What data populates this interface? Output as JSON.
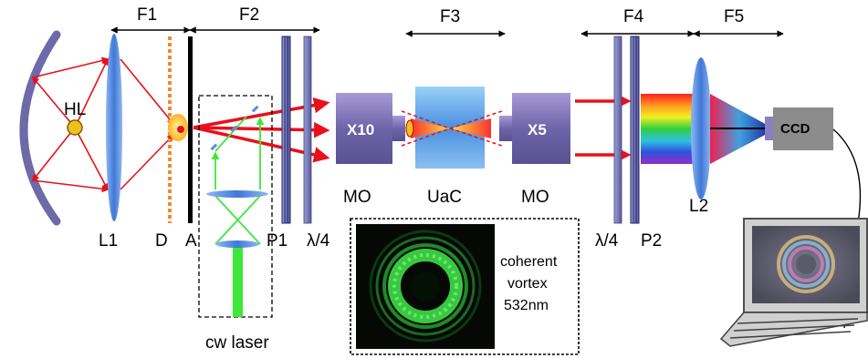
{
  "sections": [
    "F1",
    "F2",
    "F3",
    "F4",
    "F5"
  ],
  "components": {
    "lamp": "HL",
    "lens1": "L1",
    "diffuser": "D",
    "aperture": "A",
    "polarizer1": "P1",
    "quarter_wave_1": "λ/4",
    "objective_left_mag": "X10",
    "objective_left": "MO",
    "sample": "UaC",
    "objective_right_mag": "X5",
    "objective_right": "MO",
    "quarter_wave_2": "λ/4",
    "polarizer2": "P2",
    "lens2": "L2",
    "camera": "CCD",
    "laser": "cw laser"
  },
  "inset_caption": [
    "coherent",
    "vortex",
    "532nm"
  ],
  "colors": {
    "beam": "#e8101a",
    "laser_beam": "#3ee83a",
    "lens": "#5a8ee0",
    "mirror": "#6e6aa8",
    "objective": "#8a7fc0",
    "sample": "#6aa8e8"
  }
}
